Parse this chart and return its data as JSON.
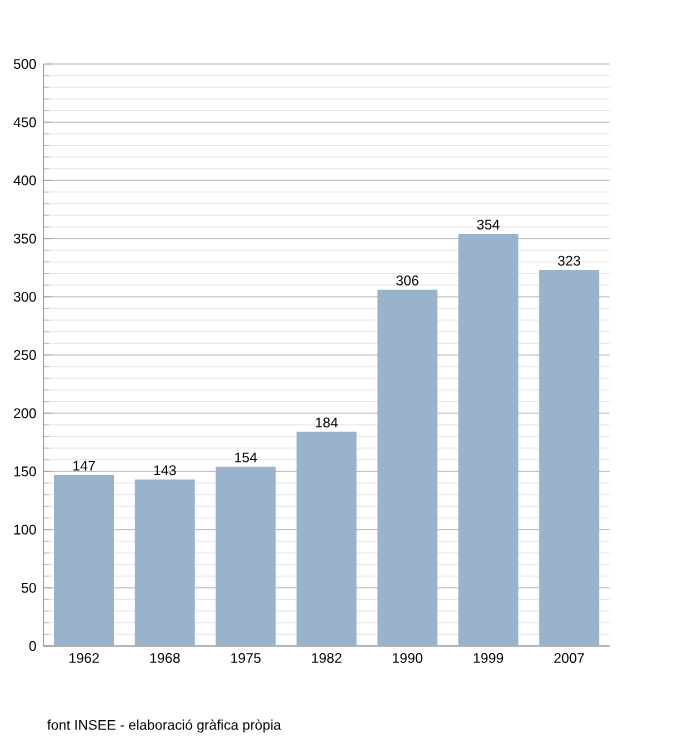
{
  "chart_data": {
    "type": "bar",
    "categories": [
      "1962",
      "1968",
      "1975",
      "1982",
      "1990",
      "1999",
      "2007"
    ],
    "values": [
      147,
      143,
      154,
      184,
      306,
      354,
      323
    ],
    "color": "#9ab3cc",
    "ylim": [
      0,
      500
    ],
    "yticks": [
      0,
      50,
      100,
      150,
      200,
      250,
      300,
      350,
      400,
      450,
      500
    ],
    "grid": "y",
    "data_labels": true,
    "annotations": [
      "font INSEE - elaboració gràfica pròpia"
    ]
  }
}
